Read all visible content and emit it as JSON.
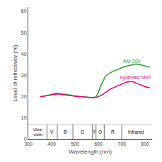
{
  "chart_data": {
    "type": "line",
    "xlabel": "Wavelength (nm)",
    "ylabel": "Level of reflectivity (%)",
    "xlim": [
      300,
      830
    ],
    "ylim": [
      0,
      62
    ],
    "xticks": [
      300,
      400,
      500,
      600,
      700,
      800
    ],
    "yticks": [
      0,
      10,
      20,
      30,
      40,
      50,
      60
    ],
    "grid": false,
    "series": [
      {
        "name": "AM-200",
        "color": "#2ca02c",
        "label_x": 700,
        "label_y": 36.5,
        "x": [
          350,
          360,
          370,
          380,
          390,
          400,
          410,
          420,
          430,
          440,
          450,
          460,
          470,
          480,
          490,
          500,
          510,
          520,
          530,
          540,
          550,
          560,
          570,
          575,
          580,
          590,
          600,
          610,
          620,
          630,
          640,
          650,
          660,
          670,
          680,
          690,
          700,
          710,
          720,
          730,
          740,
          750,
          760,
          770,
          780,
          790,
          800,
          810,
          820
        ],
        "values": [
          20.0,
          20.1,
          20.3,
          20.6,
          20.9,
          21.2,
          21.5,
          21.6,
          21.5,
          21.4,
          21.3,
          21.1,
          21.0,
          20.8,
          20.5,
          20.3,
          20.2,
          20.1,
          20.0,
          19.9,
          19.8,
          19.7,
          19.6,
          19.5,
          19.6,
          20.0,
          22.0,
          25.0,
          27.5,
          29.5,
          30.5,
          31.2,
          31.8,
          32.2,
          32.7,
          33.2,
          33.6,
          34.0,
          34.3,
          34.6,
          34.9,
          35.2,
          35.3,
          35.2,
          35.0,
          34.7,
          34.4,
          34.1,
          33.8
        ]
      },
      {
        "name": "Synthetic MIO",
        "color": "#e8006e",
        "label_x": 685,
        "label_y": 29.0,
        "x": [
          350,
          360,
          370,
          380,
          390,
          400,
          410,
          420,
          430,
          440,
          450,
          460,
          470,
          480,
          490,
          500,
          510,
          520,
          530,
          540,
          550,
          560,
          570,
          575,
          580,
          590,
          600,
          610,
          620,
          630,
          640,
          650,
          660,
          670,
          680,
          690,
          700,
          710,
          720,
          730,
          740,
          750,
          760,
          770,
          780,
          790,
          800,
          810,
          820
        ],
        "values": [
          20.0,
          20.1,
          20.2,
          20.4,
          20.6,
          20.9,
          21.1,
          21.2,
          21.2,
          21.1,
          21.0,
          20.9,
          20.8,
          20.6,
          20.4,
          20.2,
          20.1,
          20.0,
          19.9,
          19.8,
          19.7,
          19.6,
          19.5,
          19.5,
          19.5,
          19.6,
          20.0,
          20.5,
          21.2,
          22.0,
          22.8,
          23.5,
          24.0,
          24.5,
          25.0,
          25.5,
          26.0,
          26.4,
          26.8,
          27.0,
          27.0,
          27.0,
          26.5,
          26.0,
          25.5,
          25.0,
          24.7,
          24.4,
          24.2
        ]
      }
    ],
    "bands": {
      "edges": [
        380,
        424,
        491,
        575,
        590,
        625,
        700
      ],
      "top": 7.0,
      "labels": [
        {
          "label": "Ultra-\nviolet",
          "x": 342
        },
        {
          "label": "V",
          "x": 402
        },
        {
          "label": "B",
          "x": 457
        },
        {
          "label": "G",
          "x": 533
        },
        {
          "label": "Y",
          "x": 583
        },
        {
          "label": "O",
          "x": 607
        },
        {
          "label": "R",
          "x": 662
        },
        {
          "label": "Infrared",
          "x": 762
        }
      ]
    }
  }
}
